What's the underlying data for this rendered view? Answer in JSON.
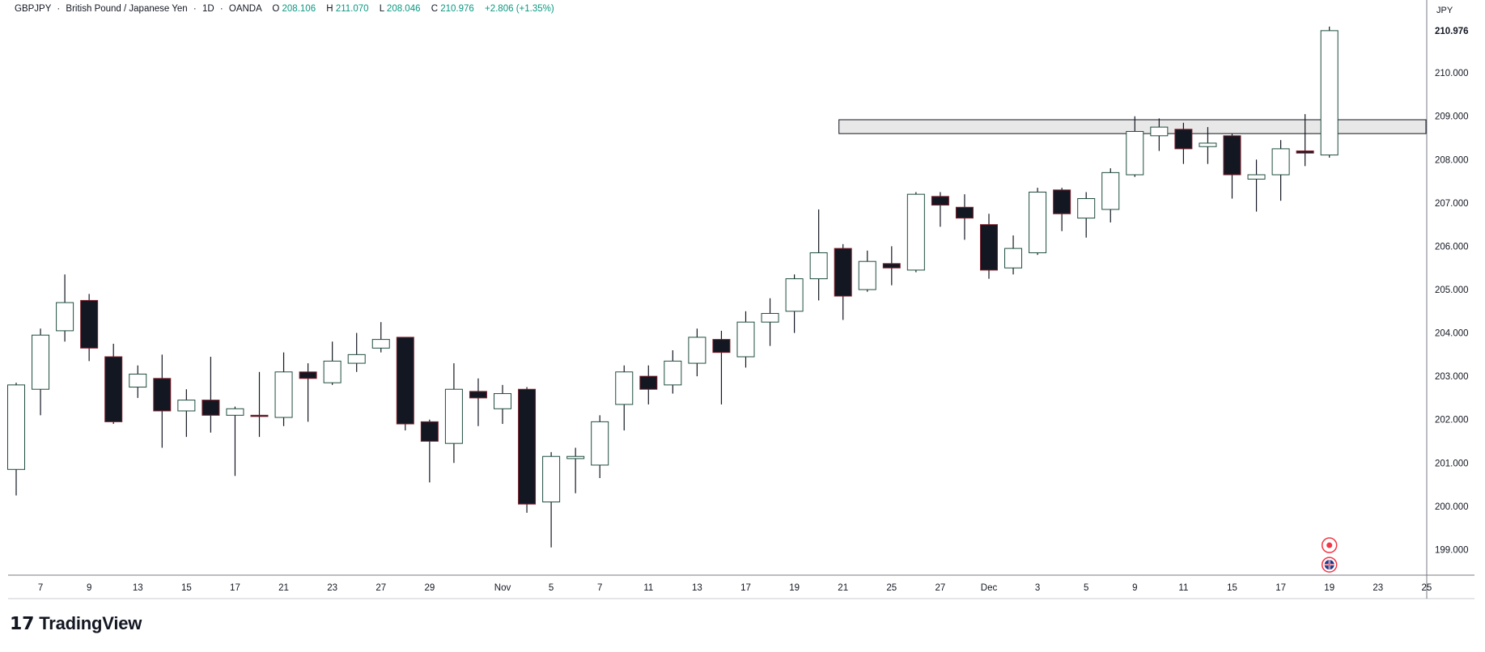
{
  "header": {
    "symbol": "GBPJPY",
    "description": "British Pound / Japanese Yen",
    "interval": "1D",
    "exchange": "OANDA",
    "sep": "·",
    "open_label": "O",
    "open": "208.106",
    "high_label": "H",
    "high": "211.070",
    "low_label": "L",
    "low": "208.046",
    "close_label": "C",
    "close": "210.976",
    "change": "+2.806 (+1.35%)"
  },
  "price_axis": {
    "currency": "JPY",
    "last_price_label": "210.976"
  },
  "branding": {
    "logo_text": "TradingView",
    "logo_mark": "𝟭𝟳"
  },
  "colors": {
    "bull_body": "#ffffff",
    "bull_border": "#1e4d3d",
    "bear_body": "#131722",
    "bear_border": "#7a1f2b",
    "wick": "#131722",
    "header_value": "#089981",
    "zone_fill": "#e8e8e8",
    "zone_border": "#131722"
  },
  "chart_data": {
    "type": "candlestick",
    "symbol": "GBPJPY",
    "interval": "1D",
    "ylim": [
      198.4,
      211.4
    ],
    "y_ticks": [
      199,
      200,
      201,
      202,
      203,
      204,
      205,
      206,
      207,
      208,
      209,
      210
    ],
    "y_tick_labels": [
      "199.000",
      "200.000",
      "201.000",
      "202.000",
      "203.000",
      "204.000",
      "205.000",
      "206.000",
      "207.000",
      "208.000",
      "209.000",
      "210.000"
    ],
    "x_tick_labels": [
      {
        "label": "7",
        "bar": 1
      },
      {
        "label": "9",
        "bar": 3
      },
      {
        "label": "13",
        "bar": 5
      },
      {
        "label": "15",
        "bar": 7
      },
      {
        "label": "17",
        "bar": 9
      },
      {
        "label": "21",
        "bar": 11
      },
      {
        "label": "23",
        "bar": 13
      },
      {
        "label": "27",
        "bar": 15
      },
      {
        "label": "29",
        "bar": 17
      },
      {
        "label": "Nov",
        "bar": 20
      },
      {
        "label": "5",
        "bar": 22
      },
      {
        "label": "7",
        "bar": 24
      },
      {
        "label": "11",
        "bar": 26
      },
      {
        "label": "13",
        "bar": 28
      },
      {
        "label": "17",
        "bar": 30
      },
      {
        "label": "19",
        "bar": 32
      },
      {
        "label": "21",
        "bar": 34
      },
      {
        "label": "25",
        "bar": 36
      },
      {
        "label": "27",
        "bar": 38
      },
      {
        "label": "Dec",
        "bar": 40
      },
      {
        "label": "3",
        "bar": 42
      },
      {
        "label": "5",
        "bar": 44
      },
      {
        "label": "9",
        "bar": 46
      },
      {
        "label": "11",
        "bar": 48
      },
      {
        "label": "15",
        "bar": 50
      },
      {
        "label": "17",
        "bar": 52
      },
      {
        "label": "19",
        "bar": 54
      },
      {
        "label": "23",
        "bar": 56
      },
      {
        "label": "25",
        "bar": 58
      }
    ],
    "candles": [
      {
        "o": 200.85,
        "h": 202.85,
        "l": 200.25,
        "c": 202.8
      },
      {
        "o": 202.7,
        "h": 204.1,
        "l": 202.1,
        "c": 203.95
      },
      {
        "o": 204.05,
        "h": 205.35,
        "l": 203.8,
        "c": 204.7
      },
      {
        "o": 204.75,
        "h": 204.9,
        "l": 203.35,
        "c": 203.65
      },
      {
        "o": 203.45,
        "h": 203.75,
        "l": 201.9,
        "c": 201.95
      },
      {
        "o": 202.75,
        "h": 203.25,
        "l": 202.5,
        "c": 203.05
      },
      {
        "o": 202.95,
        "h": 203.5,
        "l": 201.35,
        "c": 202.2
      },
      {
        "o": 202.2,
        "h": 202.7,
        "l": 201.6,
        "c": 202.45
      },
      {
        "o": 202.45,
        "h": 203.45,
        "l": 201.7,
        "c": 202.1
      },
      {
        "o": 202.1,
        "h": 202.3,
        "l": 200.7,
        "c": 202.25
      },
      {
        "o": 202.1,
        "h": 203.1,
        "l": 201.6,
        "c": 202.08
      },
      {
        "o": 202.05,
        "h": 203.55,
        "l": 201.85,
        "c": 203.1
      },
      {
        "o": 203.1,
        "h": 203.3,
        "l": 201.95,
        "c": 202.95
      },
      {
        "o": 202.85,
        "h": 203.8,
        "l": 202.8,
        "c": 203.35
      },
      {
        "o": 203.3,
        "h": 204.0,
        "l": 203.1,
        "c": 203.5
      },
      {
        "o": 203.65,
        "h": 204.25,
        "l": 203.55,
        "c": 203.85
      },
      {
        "o": 203.9,
        "h": 203.9,
        "l": 201.75,
        "c": 201.9
      },
      {
        "o": 201.95,
        "h": 202.0,
        "l": 200.55,
        "c": 201.5
      },
      {
        "o": 201.45,
        "h": 203.3,
        "l": 201.0,
        "c": 202.7
      },
      {
        "o": 202.65,
        "h": 202.95,
        "l": 201.85,
        "c": 202.5
      },
      {
        "o": 202.25,
        "h": 202.8,
        "l": 201.9,
        "c": 202.6
      },
      {
        "o": 202.7,
        "h": 202.75,
        "l": 199.85,
        "c": 200.05
      },
      {
        "o": 200.1,
        "h": 201.25,
        "l": 199.05,
        "c": 201.15
      },
      {
        "o": 201.1,
        "h": 201.35,
        "l": 200.3,
        "c": 201.15
      },
      {
        "o": 200.95,
        "h": 202.1,
        "l": 200.65,
        "c": 201.95
      },
      {
        "o": 202.35,
        "h": 203.25,
        "l": 201.75,
        "c": 203.1
      },
      {
        "o": 203.0,
        "h": 203.25,
        "l": 202.35,
        "c": 202.7
      },
      {
        "o": 202.8,
        "h": 203.6,
        "l": 202.6,
        "c": 203.35
      },
      {
        "o": 203.3,
        "h": 204.1,
        "l": 203.0,
        "c": 203.9
      },
      {
        "o": 203.85,
        "h": 204.05,
        "l": 202.35,
        "c": 203.55
      },
      {
        "o": 203.45,
        "h": 204.5,
        "l": 203.2,
        "c": 204.25
      },
      {
        "o": 204.25,
        "h": 204.8,
        "l": 203.7,
        "c": 204.45
      },
      {
        "o": 204.5,
        "h": 205.35,
        "l": 204.0,
        "c": 205.25
      },
      {
        "o": 205.25,
        "h": 206.85,
        "l": 204.75,
        "c": 205.85
      },
      {
        "o": 205.95,
        "h": 206.05,
        "l": 204.3,
        "c": 204.85
      },
      {
        "o": 205.0,
        "h": 205.9,
        "l": 204.95,
        "c": 205.65
      },
      {
        "o": 205.6,
        "h": 206.0,
        "l": 205.1,
        "c": 205.5
      },
      {
        "o": 205.45,
        "h": 207.25,
        "l": 205.4,
        "c": 207.2
      },
      {
        "o": 207.15,
        "h": 207.25,
        "l": 206.45,
        "c": 206.95
      },
      {
        "o": 206.9,
        "h": 207.2,
        "l": 206.15,
        "c": 206.65
      },
      {
        "o": 206.5,
        "h": 206.75,
        "l": 205.25,
        "c": 205.45
      },
      {
        "o": 205.5,
        "h": 206.25,
        "l": 205.35,
        "c": 205.95
      },
      {
        "o": 205.85,
        "h": 207.35,
        "l": 205.8,
        "c": 207.25
      },
      {
        "o": 207.3,
        "h": 207.35,
        "l": 206.35,
        "c": 206.75
      },
      {
        "o": 206.65,
        "h": 207.25,
        "l": 206.2,
        "c": 207.1
      },
      {
        "o": 206.85,
        "h": 207.8,
        "l": 206.55,
        "c": 207.7
      },
      {
        "o": 207.65,
        "h": 209.0,
        "l": 207.6,
        "c": 208.65
      },
      {
        "o": 208.55,
        "h": 208.95,
        "l": 208.2,
        "c": 208.75
      },
      {
        "o": 208.7,
        "h": 208.85,
        "l": 207.9,
        "c": 208.25
      },
      {
        "o": 208.3,
        "h": 208.75,
        "l": 207.9,
        "c": 208.38
      },
      {
        "o": 208.55,
        "h": 208.6,
        "l": 207.1,
        "c": 207.65
      },
      {
        "o": 207.55,
        "h": 208.0,
        "l": 206.8,
        "c": 207.65
      },
      {
        "o": 207.65,
        "h": 208.45,
        "l": 207.05,
        "c": 208.25
      },
      {
        "o": 208.2,
        "h": 209.05,
        "l": 207.85,
        "c": 208.15
      },
      {
        "o": 208.106,
        "h": 211.07,
        "l": 208.046,
        "c": 210.976
      }
    ],
    "zones": [
      {
        "from_bar": 34.0,
        "y_low": 208.6,
        "y_high": 208.92
      }
    ],
    "markers": [
      {
        "bar": 54,
        "type": "event-circle",
        "y": 199.1
      },
      {
        "bar": 54,
        "type": "flag-circle",
        "y": 198.65
      }
    ]
  }
}
